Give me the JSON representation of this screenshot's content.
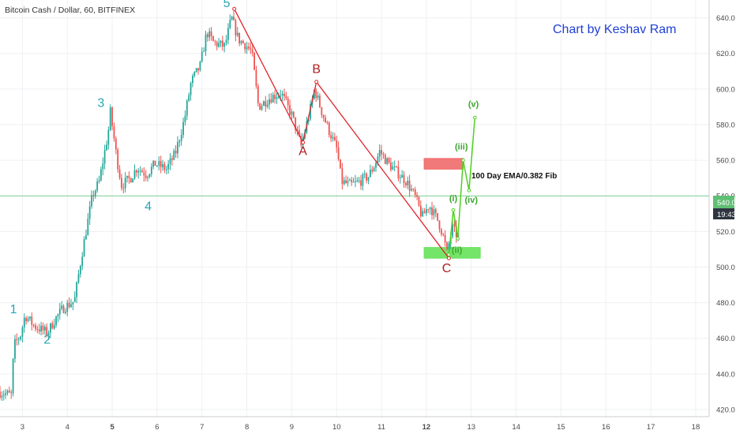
{
  "header": {
    "symbol_title": "Bitcoin Cash / Dollar, 60, BITFINEX",
    "credit": "Chart by Keshav Ram"
  },
  "price_tags": {
    "current_price": "540.0",
    "countdown": "19:43"
  },
  "colors": {
    "up_candle": "#26a69a",
    "down_candle": "#ef5350",
    "impulse_line": "#e0242a",
    "subwave_line": "#4ed01f",
    "resistance_box": "#f16a6a",
    "support_box": "#66e25a",
    "grid": "#eef0f3",
    "price_line": "#7fd18f"
  },
  "chart_data": {
    "type": "candlestick",
    "ylim": [
      416,
      650
    ],
    "xlim": [
      2.5,
      18.3
    ],
    "yticks": [
      "420.0",
      "440.0",
      "460.0",
      "480.0",
      "500.0",
      "520.0",
      "540.0",
      "560.0",
      "580.0",
      "600.0",
      "620.0",
      "640.0"
    ],
    "xticks": [
      "3",
      "4",
      "5",
      "6",
      "7",
      "8",
      "9",
      "10",
      "11",
      "12",
      "13",
      "14",
      "15",
      "16",
      "17",
      "18"
    ],
    "price_path": [
      [
        2.5,
        430
      ],
      [
        2.8,
        428
      ],
      [
        2.85,
        456
      ],
      [
        3.0,
        462
      ],
      [
        3.1,
        473
      ],
      [
        3.3,
        467
      ],
      [
        3.6,
        463
      ],
      [
        3.75,
        470
      ],
      [
        3.95,
        477
      ],
      [
        4.2,
        481
      ],
      [
        4.35,
        505
      ],
      [
        4.6,
        540
      ],
      [
        4.75,
        548
      ],
      [
        4.95,
        575
      ],
      [
        5.0,
        587
      ],
      [
        5.15,
        560
      ],
      [
        5.25,
        546
      ],
      [
        5.45,
        550
      ],
      [
        5.6,
        556
      ],
      [
        5.8,
        552
      ],
      [
        6.0,
        558
      ],
      [
        6.25,
        555
      ],
      [
        6.45,
        564
      ],
      [
        6.65,
        583
      ],
      [
        6.8,
        604
      ],
      [
        7.0,
        613
      ],
      [
        7.15,
        632
      ],
      [
        7.3,
        626
      ],
      [
        7.55,
        624
      ],
      [
        7.7,
        640
      ],
      [
        7.85,
        628
      ],
      [
        8.0,
        625
      ],
      [
        8.15,
        621
      ],
      [
        8.3,
        590
      ],
      [
        8.55,
        595
      ],
      [
        8.8,
        598
      ],
      [
        9.05,
        585
      ],
      [
        9.25,
        568
      ],
      [
        9.45,
        588
      ],
      [
        9.55,
        600
      ],
      [
        9.7,
        588
      ],
      [
        9.85,
        578
      ],
      [
        10.05,
        566
      ],
      [
        10.15,
        548
      ],
      [
        10.35,
        546
      ],
      [
        10.55,
        548
      ],
      [
        10.75,
        551
      ],
      [
        10.9,
        558
      ],
      [
        11.0,
        565
      ],
      [
        11.2,
        558
      ],
      [
        11.4,
        553
      ],
      [
        11.6,
        548
      ],
      [
        11.8,
        539
      ],
      [
        11.95,
        528
      ],
      [
        12.1,
        535
      ],
      [
        12.3,
        526
      ],
      [
        12.4,
        519
      ],
      [
        12.5,
        508
      ],
      [
        12.62,
        522
      ],
      [
        12.72,
        518
      ]
    ],
    "waves": [
      {
        "label": "1",
        "x": 2.8,
        "y": 474
      },
      {
        "label": "2",
        "x": 3.55,
        "y": 457
      },
      {
        "label": "3",
        "x": 4.75,
        "y": 590
      },
      {
        "label": "4",
        "x": 5.8,
        "y": 532
      },
      {
        "label": "5",
        "x": 7.55,
        "y": 646
      },
      {
        "label": "A",
        "x": 9.25,
        "y": 563
      },
      {
        "label": "B",
        "x": 9.55,
        "y": 609
      },
      {
        "label": "C",
        "x": 12.45,
        "y": 497
      }
    ],
    "impulse_path": [
      [
        7.72,
        645
      ],
      [
        9.25,
        570
      ],
      [
        9.55,
        604
      ],
      [
        12.5,
        505
      ]
    ],
    "subwaves": [
      {
        "label": "(i)",
        "x": 12.6,
        "y": 537
      },
      {
        "label": "(ii)",
        "x": 12.68,
        "y": 508
      },
      {
        "label": "(iii)",
        "x": 12.78,
        "y": 566
      },
      {
        "label": "(iv)",
        "x": 13.0,
        "y": 536
      },
      {
        "label": "(v)",
        "x": 13.05,
        "y": 590
      }
    ],
    "subwave_path": [
      [
        12.5,
        507
      ],
      [
        12.6,
        532
      ],
      [
        12.7,
        516
      ],
      [
        12.82,
        560
      ],
      [
        12.95,
        543
      ],
      [
        13.08,
        584
      ]
    ],
    "zones": [
      {
        "name": "resistance",
        "x0": 11.95,
        "x1": 12.82,
        "y0": 555,
        "y1": 561,
        "label": "100 Day EMA/0.382 Fib"
      },
      {
        "name": "support",
        "x0": 11.95,
        "x1": 13.2,
        "y0": 505,
        "y1": 511
      }
    ],
    "current_price": 540
  }
}
